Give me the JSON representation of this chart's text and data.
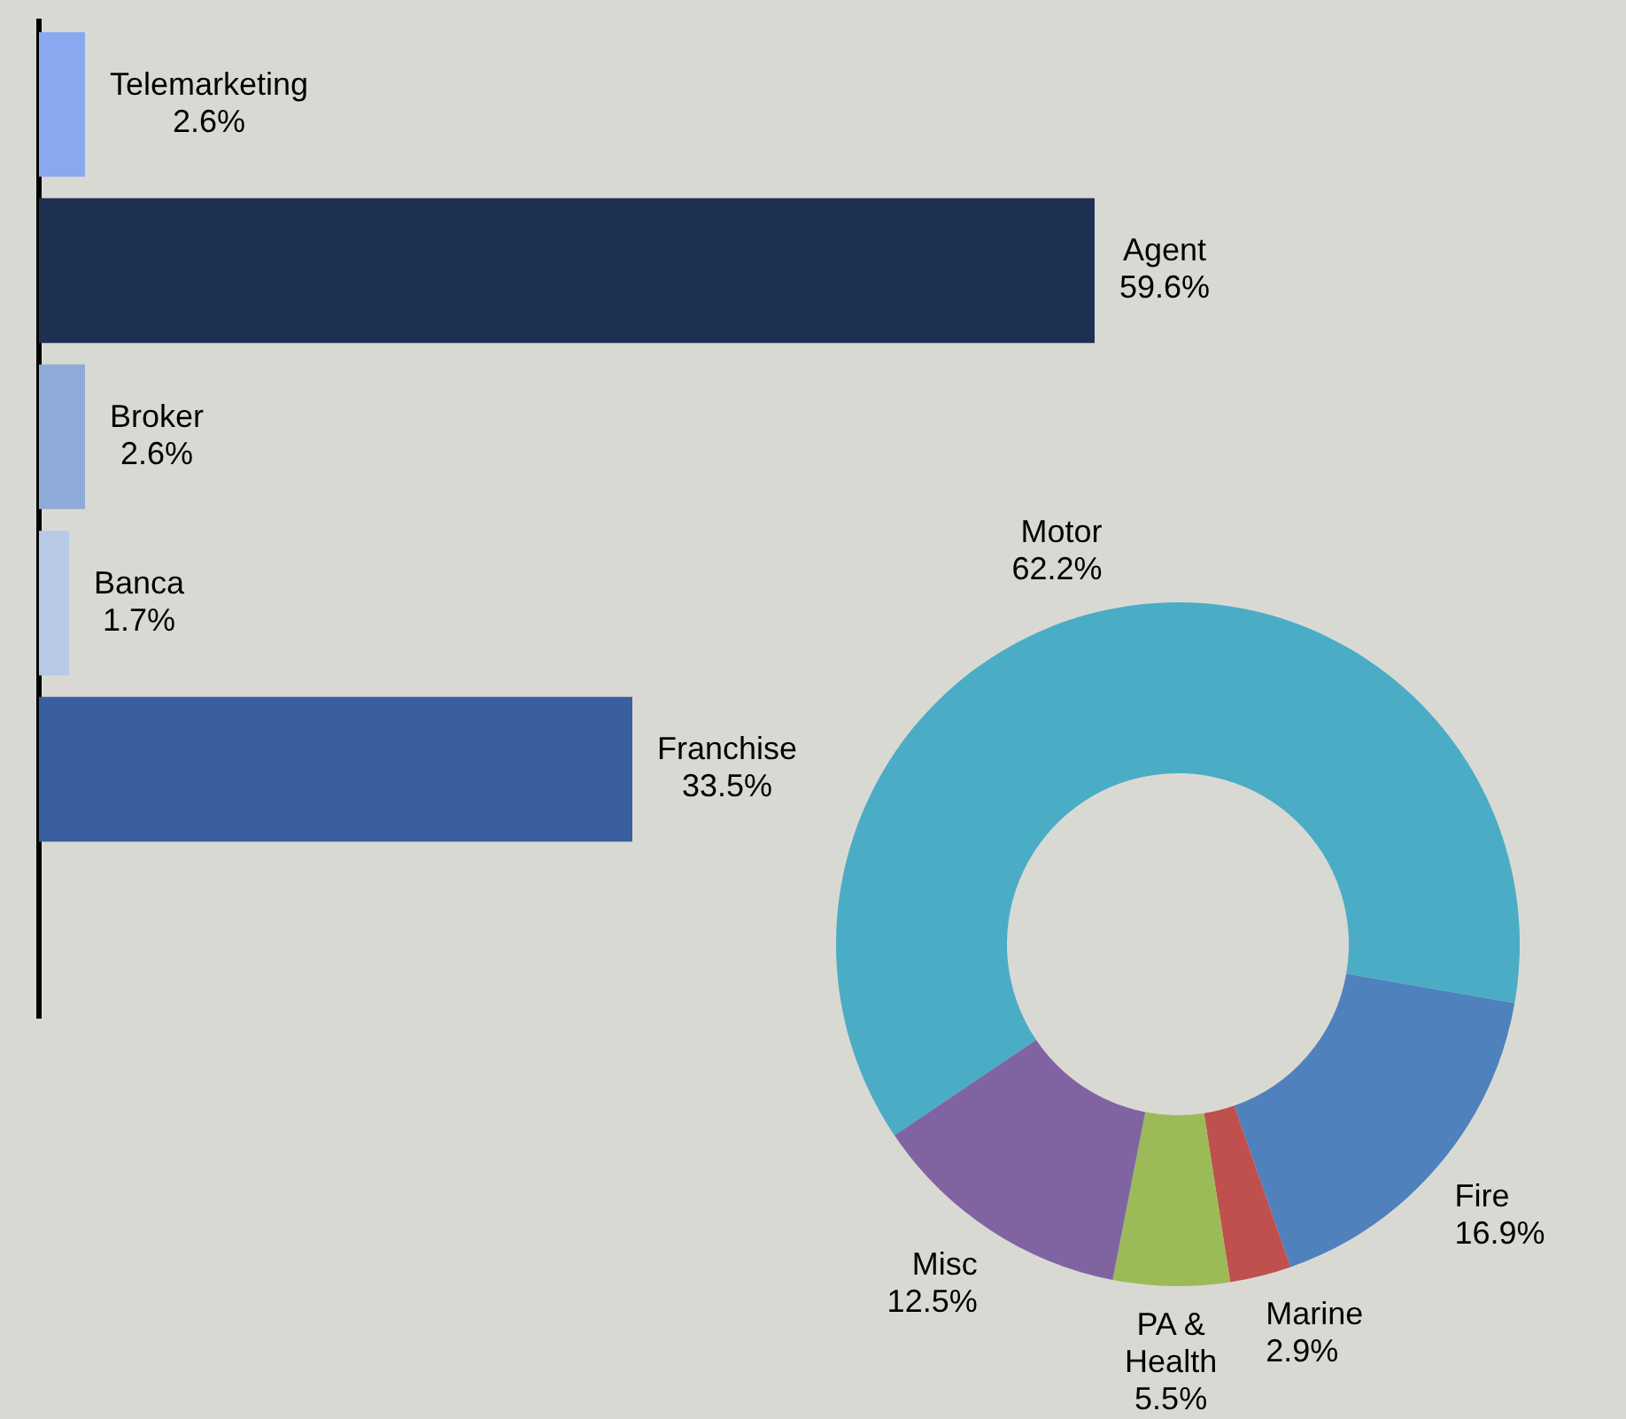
{
  "chart_data": [
    {
      "type": "bar",
      "orientation": "horizontal",
      "categories": [
        "Telemarketing",
        "Agent",
        "Broker",
        "Banca",
        "Franchise",
        null
      ],
      "values": [
        2.6,
        59.6,
        2.6,
        1.7,
        33.5,
        null
      ],
      "colors": [
        "#8aa8f0",
        "#1e3052",
        "#8eaad8",
        "#b8c9e8",
        "#3a5fa0",
        "#3a5fa0"
      ],
      "value_labels": [
        "2.6%",
        "59.6%",
        "2.6%",
        "1.7%",
        "33.5%",
        null
      ]
    },
    {
      "type": "donut",
      "categories": [
        "Motor",
        "Fire",
        "Marine",
        "PA & Health",
        "Misc"
      ],
      "values": [
        62.2,
        16.9,
        2.9,
        5.5,
        12.5
      ],
      "colors": [
        "#4bacc6",
        "#4f81bd",
        "#c0504d",
        "#9bbb59",
        "#8064a2"
      ],
      "value_labels": [
        "62.2%",
        "16.9%",
        "2.9%",
        "5.5%",
        "12.5%"
      ]
    }
  ]
}
